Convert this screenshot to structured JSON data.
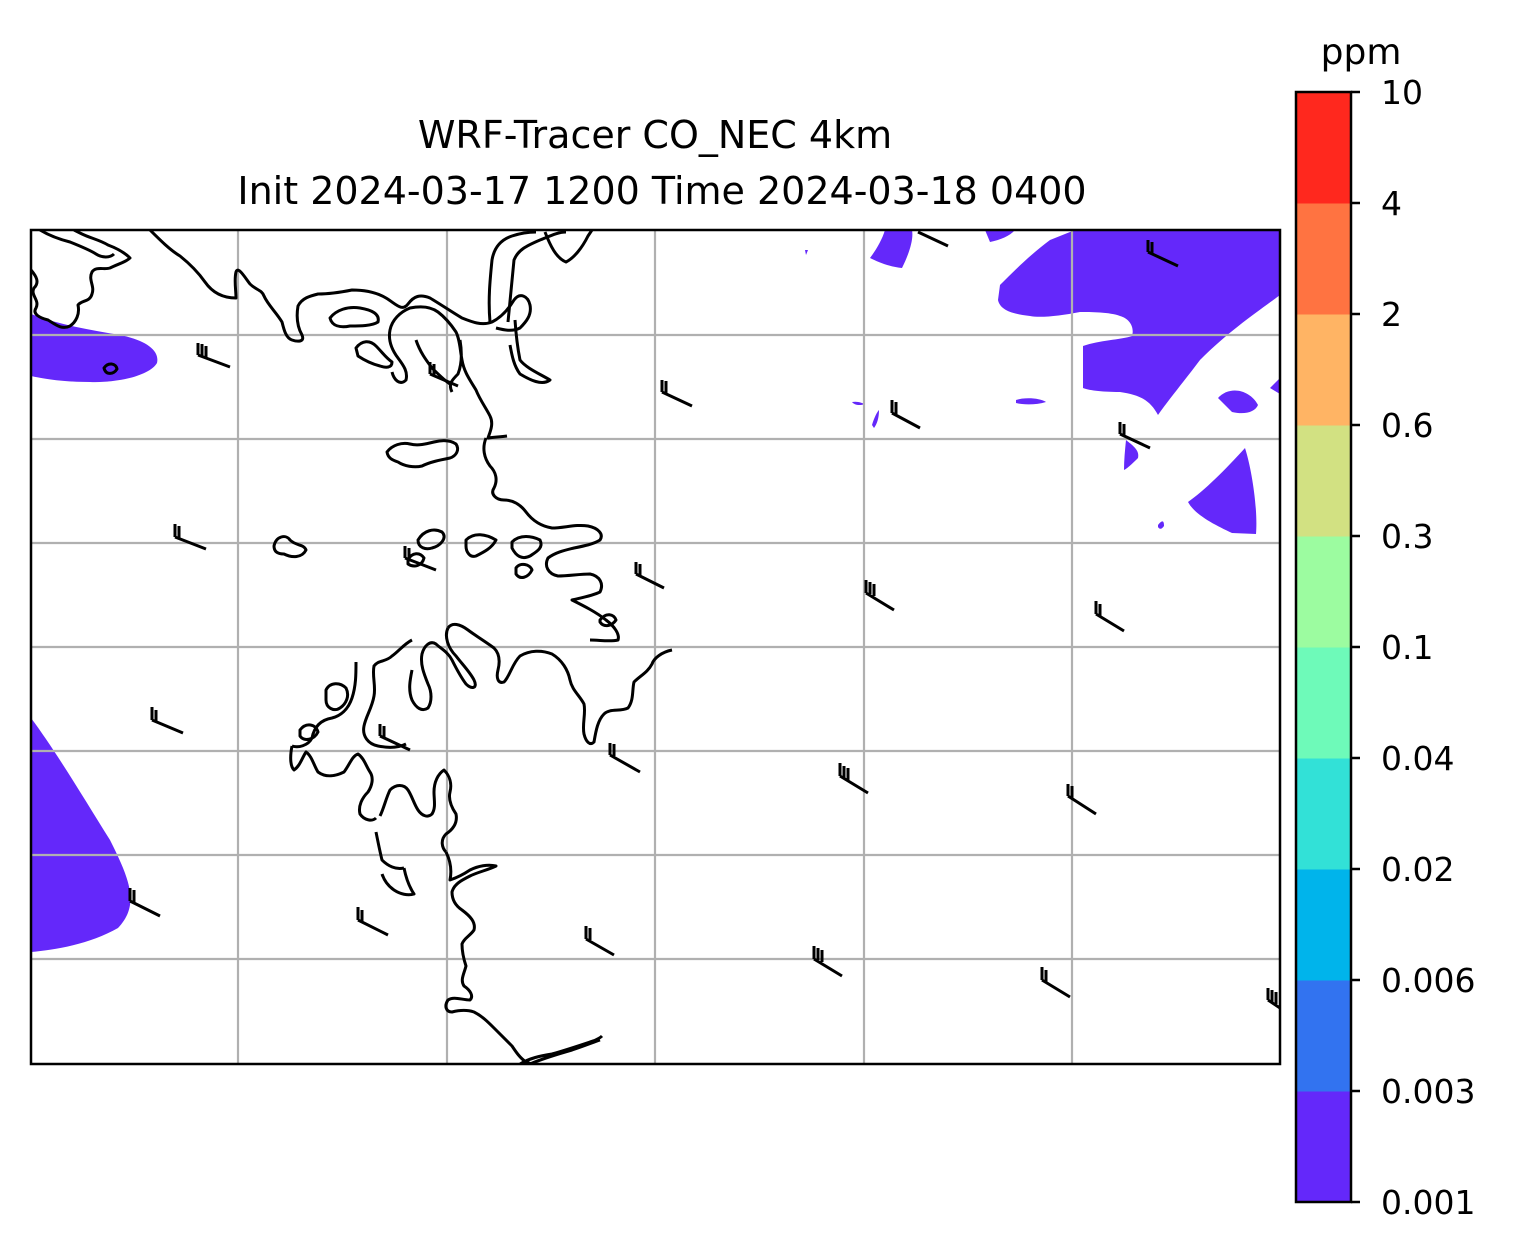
{
  "title": {
    "line1": "WRF-Tracer CO_NEC 4km",
    "line2": "Init 2024-03-17 1200 Time 2024-03-18 0400"
  },
  "colorbar": {
    "unit": "ppm",
    "levels": [
      "0.001",
      "0.003",
      "0.006",
      "0.02",
      "0.04",
      "0.1",
      "0.3",
      "0.6",
      "2",
      "4",
      "10"
    ],
    "colors": [
      "#6428fa",
      "#3273f0",
      "#00b4eb",
      "#32e1d7",
      "#6efab9",
      "#9cfca0",
      "#d2e182",
      "#ffb464",
      "#ff7341",
      "#ff281e"
    ]
  },
  "map": {
    "plume_color": "#6428fa",
    "grid_color": "#b0b0b0",
    "coast_color": "#000000",
    "gridlines": true
  }
}
